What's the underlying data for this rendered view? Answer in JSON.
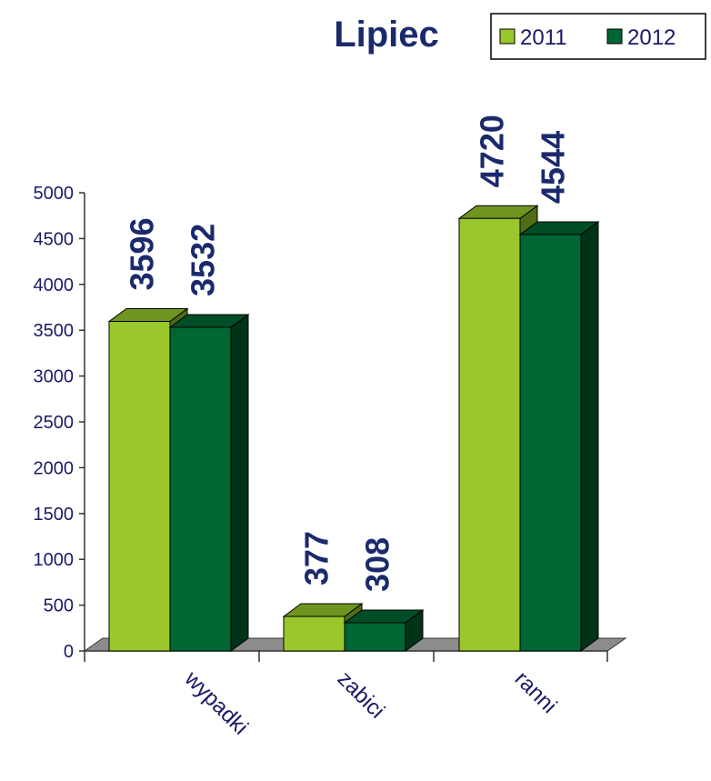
{
  "chart_data": {
    "type": "bar",
    "title": "Lipiec",
    "categories": [
      "wypadki",
      "zabici",
      "ranni"
    ],
    "series": [
      {
        "name": "2011",
        "values": [
          3596,
          377,
          4720
        ],
        "color": "#99c72c",
        "top_color": "#6f9420",
        "side_color": "#4f6d12"
      },
      {
        "name": "2012",
        "values": [
          3532,
          308,
          4544
        ],
        "color": "#006633",
        "top_color": "#004d26",
        "side_color": "#003318"
      }
    ],
    "ylim": [
      0,
      5000
    ],
    "yticks": [
      0,
      500,
      1000,
      1500,
      2000,
      2500,
      3000,
      3500,
      4000,
      4500,
      5000
    ],
    "xlabel": "",
    "ylabel": "",
    "legend_position": "top-right",
    "floor_color": "#8c8c8c"
  }
}
